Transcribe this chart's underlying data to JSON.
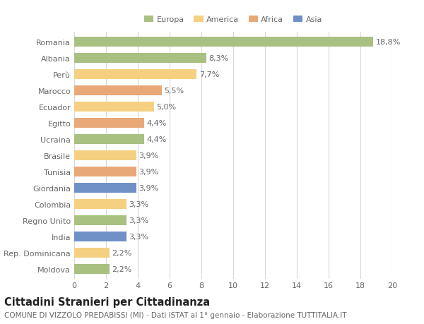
{
  "categories": [
    "Romania",
    "Albania",
    "Perù",
    "Marocco",
    "Ecuador",
    "Egitto",
    "Ucraina",
    "Brasile",
    "Tunisia",
    "Giordania",
    "Colombia",
    "Regno Unito",
    "India",
    "Rep. Dominicana",
    "Moldova"
  ],
  "values": [
    18.8,
    8.3,
    7.7,
    5.5,
    5.0,
    4.4,
    4.4,
    3.9,
    3.9,
    3.9,
    3.3,
    3.3,
    3.3,
    2.2,
    2.2
  ],
  "labels": [
    "18,8%",
    "8,3%",
    "7,7%",
    "5,5%",
    "5,0%",
    "4,4%",
    "4,4%",
    "3,9%",
    "3,9%",
    "3,9%",
    "3,3%",
    "3,3%",
    "3,3%",
    "2,2%",
    "2,2%"
  ],
  "colors": [
    "#a8c080",
    "#a8c080",
    "#f5d080",
    "#e8a878",
    "#f5d080",
    "#e8a878",
    "#a8c080",
    "#f5d080",
    "#e8a878",
    "#7090c8",
    "#f5d080",
    "#a8c080",
    "#7090c8",
    "#f5d080",
    "#a8c080"
  ],
  "legend": {
    "Europa": "#a8c080",
    "America": "#f5d080",
    "Africa": "#e8a878",
    "Asia": "#7090c8"
  },
  "title": "Cittadini Stranieri per Cittadinanza",
  "subtitle": "COMUNE DI VIZZOLO PREDABISSI (MI) - Dati ISTAT al 1° gennaio - Elaborazione TUTTITALIA.IT",
  "xlim": [
    0,
    20
  ],
  "xticks": [
    0,
    2,
    4,
    6,
    8,
    10,
    12,
    14,
    16,
    18,
    20
  ],
  "background_color": "#ffffff",
  "grid_color": "#d8d8d8",
  "bar_height": 0.6,
  "label_fontsize": 8,
  "tick_fontsize": 8,
  "title_fontsize": 10.5,
  "subtitle_fontsize": 7.5
}
